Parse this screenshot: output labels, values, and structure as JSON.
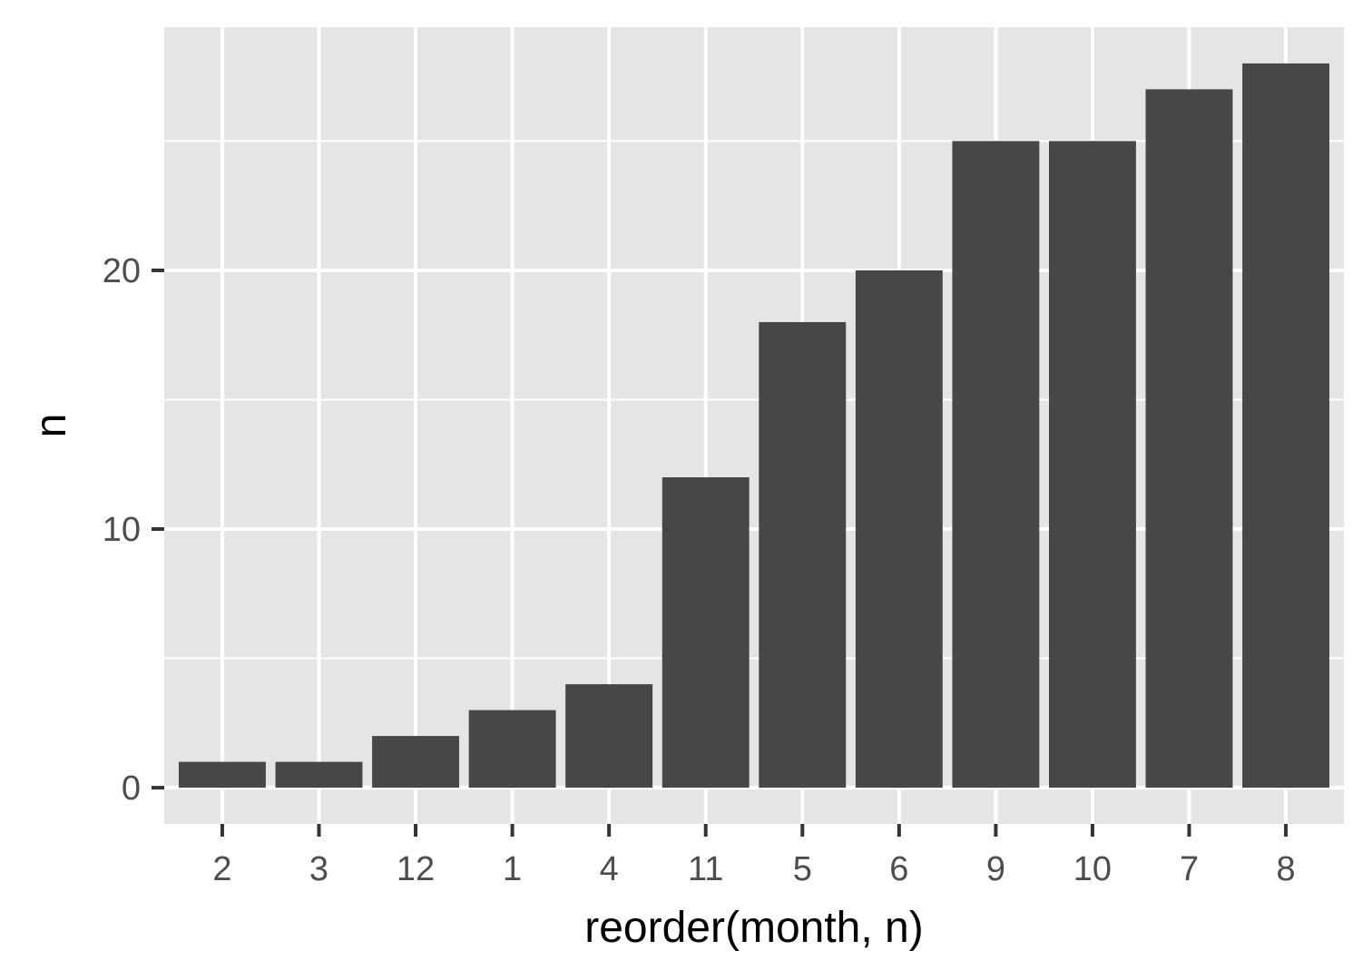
{
  "chart_data": {
    "type": "bar",
    "title": "",
    "xlabel": "reorder(month, n)",
    "ylabel": "n",
    "categories": [
      "2",
      "3",
      "12",
      "1",
      "4",
      "11",
      "5",
      "6",
      "9",
      "10",
      "7",
      "8"
    ],
    "values": [
      1,
      1,
      2,
      3,
      4,
      12,
      18,
      20,
      25,
      25,
      27,
      28
    ],
    "ylim": [
      -1.4,
      29.4
    ],
    "yticks": [
      0,
      10,
      20
    ],
    "yticks_labels": [
      "0",
      "10",
      "20"
    ],
    "grid": true,
    "legend": "none",
    "colors": {
      "panel": "#e5e5e5",
      "grid": "#ffffff",
      "bar": "#474747",
      "tick": "#333333",
      "tick_label": "#4d4d4d",
      "title": "#000000"
    }
  }
}
